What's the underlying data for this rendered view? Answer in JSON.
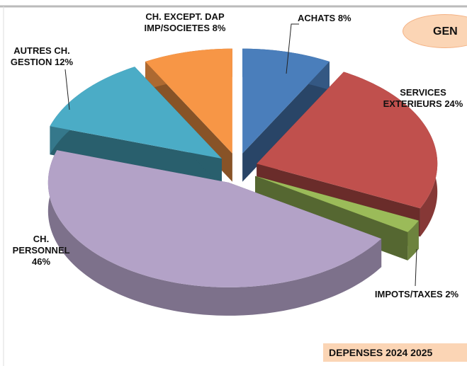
{
  "chart_data": {
    "type": "pie3d",
    "categories": [
      "ACHATS",
      "SERVICES EXTERIEURS",
      "IMPOTS/TAXES",
      "CH. PERSONNEL",
      "AUTRES CH. GESTION",
      "CH. EXCEPT. DAP IMP/SOCIETES"
    ],
    "values": [
      8,
      24,
      2,
      46,
      12,
      8
    ],
    "value_labels": [
      "8%",
      "24%",
      "2%",
      "46%",
      "12%",
      "8%"
    ],
    "colors": [
      "#4a7ebb",
      "#c0504d",
      "#9bbb59",
      "#b3a2c7",
      "#4bacc6",
      "#f79646"
    ],
    "badge": "GEN",
    "caption": "DEPENSES 2024 2025"
  }
}
